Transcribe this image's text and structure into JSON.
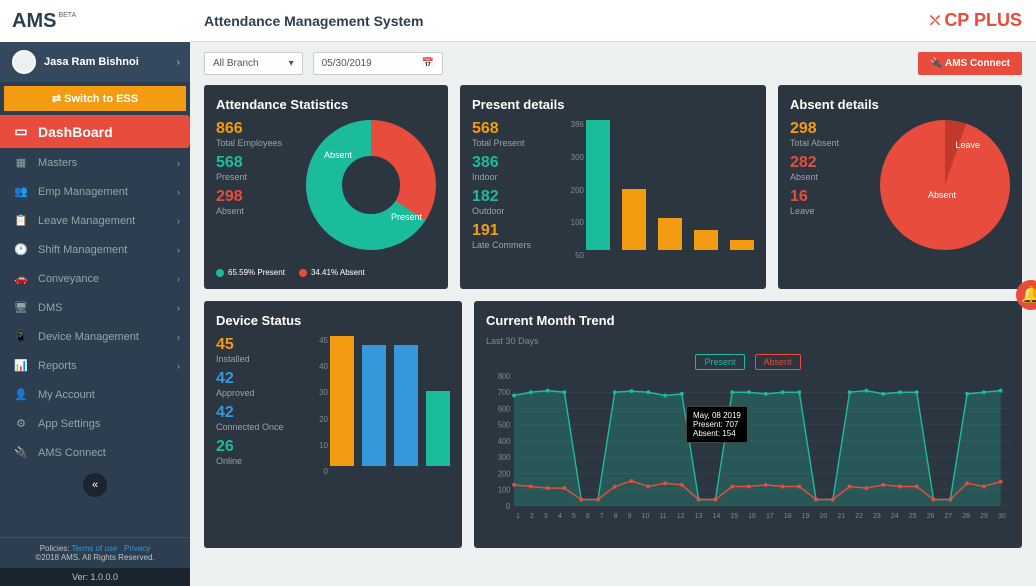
{
  "logo": {
    "part1": "A",
    "part2": "MS",
    "beta": "BETA"
  },
  "user": {
    "name": "Jasa Ram Bishnoi"
  },
  "switch_label": "⇄  Switch to ESS",
  "nav": [
    {
      "icon": "▭",
      "label": "DashBoard",
      "active": true
    },
    {
      "icon": "▦",
      "label": "Masters",
      "chev": true
    },
    {
      "icon": "👥",
      "label": "Emp Management",
      "chev": true
    },
    {
      "icon": "📋",
      "label": "Leave Management",
      "chev": true
    },
    {
      "icon": "🕐",
      "label": "Shift Management",
      "chev": true
    },
    {
      "icon": "🚗",
      "label": "Conveyance",
      "chev": true
    },
    {
      "icon": "🖥",
      "label": "DMS",
      "chev": true
    },
    {
      "icon": "📱",
      "label": "Device Management",
      "chev": true
    },
    {
      "icon": "📊",
      "label": "Reports",
      "chev": true
    },
    {
      "icon": "👤",
      "label": "My Account"
    },
    {
      "icon": "⚙",
      "label": "App Settings"
    },
    {
      "icon": "🔌",
      "label": "AMS Connect"
    }
  ],
  "footer": {
    "policies": "Policies:",
    "terms": "Terms of use",
    "privacy": "Privacy",
    "copyright": "©2018 AMS. All Rights Reserved.",
    "ver": "Ver: 1.0.0.0"
  },
  "topbar": {
    "title": "Attendance Management System",
    "cp": "CP PLUS"
  },
  "filters": {
    "branch": "All Branch",
    "date": "05/30/2019",
    "connect": "🔌 AMS Connect"
  },
  "attendance": {
    "title": "Attendance Statistics",
    "total": {
      "val": "866",
      "lbl": "Total Employees"
    },
    "present": {
      "val": "568",
      "lbl": "Present"
    },
    "absent": {
      "val": "298",
      "lbl": "Absent"
    },
    "donut": {
      "present_pct": 65.59,
      "absent_pct": 34.41,
      "absent_deg": 123,
      "present_color": "#1abc9c",
      "absent_color": "#e74c3c",
      "lbl_present": "Present",
      "lbl_absent": "Absent"
    },
    "legend": {
      "p": "65.59% Present",
      "a": "34.41% Absent"
    }
  },
  "present": {
    "title": "Present details",
    "total": {
      "val": "568",
      "lbl": "Total Present"
    },
    "indoor": {
      "val": "386",
      "lbl": "Indoor"
    },
    "outdoor": {
      "val": "182",
      "lbl": "Outdoor"
    },
    "late": {
      "val": "191",
      "lbl": "Late Commers"
    },
    "bars": {
      "values": [
        386,
        182,
        95,
        60,
        30
      ],
      "colors": [
        "#1abc9c",
        "#f39c12",
        "#f39c12",
        "#f39c12",
        "#f39c12"
      ],
      "ymax": 386,
      "yticks": [
        "386",
        "300",
        "200",
        "100",
        "50"
      ]
    }
  },
  "absent": {
    "title": "Absent details",
    "total": {
      "val": "298",
      "lbl": "Total Absent"
    },
    "absent": {
      "val": "282",
      "lbl": "Absent"
    },
    "leave": {
      "val": "16",
      "lbl": "Leave"
    },
    "pie": {
      "leave_deg": 19,
      "absent_color": "#e74c3c",
      "leave_color": "#c0392b",
      "lbl_absent": "Absent",
      "lbl_leave": "Leave"
    }
  },
  "device": {
    "title": "Device Status",
    "installed": {
      "val": "45",
      "lbl": "Installed"
    },
    "approved": {
      "val": "42",
      "lbl": "Approved"
    },
    "connected": {
      "val": "42",
      "lbl": "Connected Once"
    },
    "online": {
      "val": "26",
      "lbl": "Online"
    },
    "bars": {
      "values": [
        45,
        42,
        42,
        26
      ],
      "colors": [
        "#f39c12",
        "#3498db",
        "#3498db",
        "#1abc9c"
      ],
      "ymax": 45,
      "yticks": [
        "45",
        "40",
        "30",
        "20",
        "10",
        "0"
      ]
    }
  },
  "trend": {
    "title": "Current Month Trend",
    "sub": "Last 30 Days",
    "legend": {
      "present": "Present",
      "absent": "Absent"
    },
    "present_color": "#1abc9c",
    "absent_color": "#e74c3c",
    "ymax": 800,
    "yticks": [
      "800",
      "700",
      "600",
      "500",
      "400",
      "300",
      "200",
      "100",
      "0"
    ],
    "days": [
      "1",
      "2",
      "3",
      "4",
      "5",
      "6",
      "7",
      "8",
      "9",
      "10",
      "11",
      "12",
      "13",
      "14",
      "15",
      "16",
      "17",
      "18",
      "19",
      "20",
      "21",
      "22",
      "23",
      "24",
      "25",
      "26",
      "27",
      "28",
      "29",
      "30"
    ],
    "present_vals": [
      680,
      700,
      710,
      700,
      40,
      40,
      700,
      707,
      700,
      680,
      690,
      40,
      40,
      700,
      700,
      690,
      700,
      700,
      40,
      40,
      700,
      710,
      690,
      700,
      700,
      40,
      40,
      690,
      700,
      710
    ],
    "absent_vals": [
      130,
      120,
      110,
      110,
      40,
      40,
      120,
      154,
      120,
      140,
      130,
      40,
      40,
      120,
      120,
      130,
      120,
      120,
      40,
      40,
      120,
      110,
      130,
      120,
      120,
      40,
      40,
      140,
      120,
      150
    ],
    "tooltip": {
      "date": "May, 08 2019",
      "p": "Present: 707",
      "a": "Absent: 154"
    }
  },
  "colors": {
    "orange": "#f39c12",
    "teal": "#1abc9c",
    "red": "#e74c3c",
    "blue": "#3498db"
  }
}
